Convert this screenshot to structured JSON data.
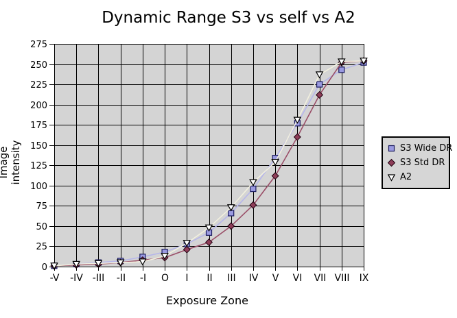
{
  "title": "Dynamic Range S3 vs self vs A2",
  "chart_data": {
    "type": "line",
    "title": "Dynamic Range S3 vs self vs A2",
    "xlabel": "Exposure Zone",
    "ylabel": "Image intensity",
    "categories": [
      "-V",
      "-IV",
      "-III",
      "-II",
      "-I",
      "O",
      "I",
      "II",
      "III",
      "IV",
      "V",
      "VI",
      "VII",
      "VIII",
      "IX"
    ],
    "ylim": [
      0,
      275
    ],
    "ytick_step": 25,
    "grid": true,
    "legend_position": "right",
    "plot_bg_color": "#d4d4d4",
    "grid_color": "#000000",
    "series": [
      {
        "name": "S3 Wide DR",
        "marker": "square",
        "marker_fill": "#9a9ae0",
        "marker_stroke": "#1a1a5e",
        "line_color": "#b6b6ea",
        "values": [
          1,
          3,
          5,
          7,
          12,
          18,
          28,
          42,
          66,
          96,
          134,
          177,
          225,
          243,
          252
        ]
      },
      {
        "name": "S3 Std DR",
        "marker": "diamond",
        "marker_fill": "#8e3d58",
        "marker_stroke": "#200010",
        "line_color": "#9a4f68",
        "values": [
          1,
          2,
          3,
          5,
          8,
          11,
          21,
          30,
          50,
          76,
          112,
          160,
          212,
          252,
          254
        ]
      },
      {
        "name": "A2",
        "marker": "triangle-down",
        "marker_fill": "#ffffff",
        "marker_stroke": "#000000",
        "line_color": "#f2f0de",
        "values": [
          1,
          3,
          4,
          5,
          6,
          13,
          29,
          48,
          73,
          104,
          129,
          181,
          237,
          253,
          254
        ]
      }
    ]
  }
}
